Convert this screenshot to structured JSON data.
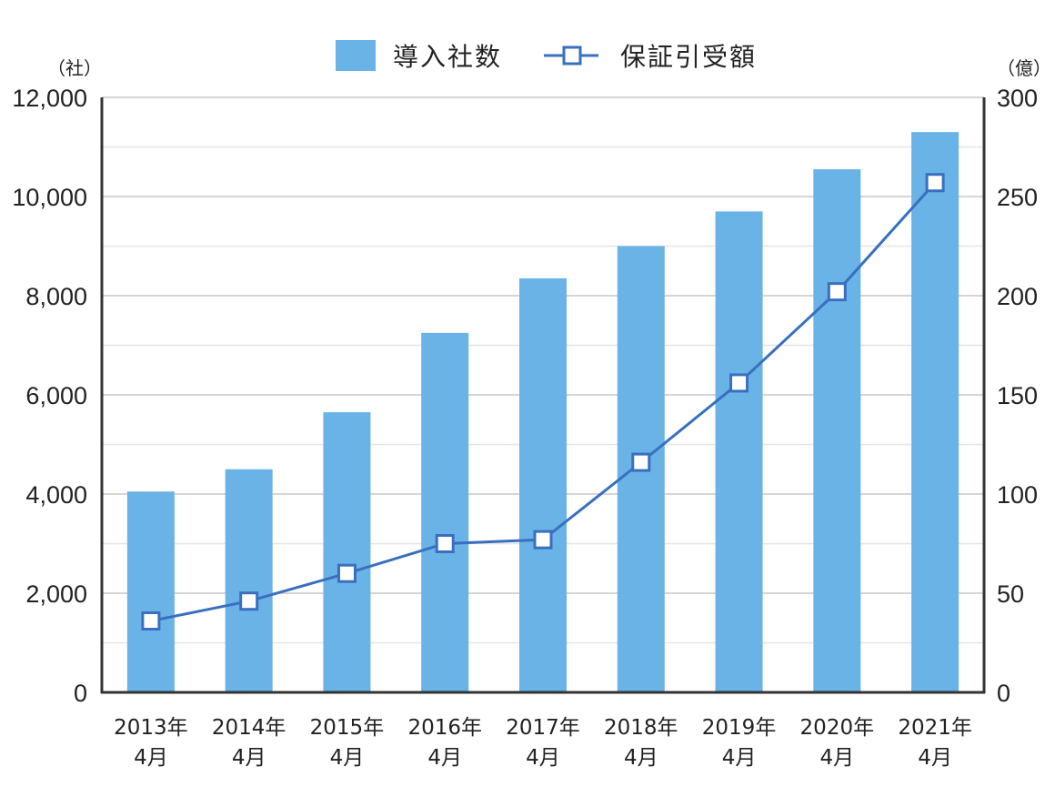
{
  "chart_data": {
    "type": "bar+line",
    "categories": [
      [
        "2013年",
        "4月"
      ],
      [
        "2014年",
        "4月"
      ],
      [
        "2015年",
        "4月"
      ],
      [
        "2016年",
        "4月"
      ],
      [
        "2017年",
        "4月"
      ],
      [
        "2018年",
        "4月"
      ],
      [
        "2019年",
        "4月"
      ],
      [
        "2020年",
        "4月"
      ],
      [
        "2021年",
        "4月"
      ]
    ],
    "series": [
      {
        "name": "導入社数",
        "type": "bar",
        "axis": "left",
        "color": "#69b3e7",
        "values": [
          4050,
          4500,
          5650,
          7250,
          8350,
          9000,
          9700,
          10550,
          11300
        ]
      },
      {
        "name": "保証引受額",
        "type": "line",
        "axis": "right",
        "color": "#3a6fbf",
        "values": [
          36,
          46,
          60,
          75,
          77,
          116,
          156,
          202,
          257
        ]
      }
    ],
    "left_axis": {
      "unit": "（社）",
      "min": 0,
      "max": 12000,
      "ticks": [
        "0",
        "2,000",
        "4,000",
        "6,000",
        "8,000",
        "10,000",
        "12,000"
      ]
    },
    "right_axis": {
      "unit": "（億）",
      "min": 0,
      "max": 300,
      "ticks": [
        "0",
        "50",
        "100",
        "150",
        "200",
        "250",
        "300"
      ]
    },
    "grid": true,
    "legend": "top-center"
  }
}
